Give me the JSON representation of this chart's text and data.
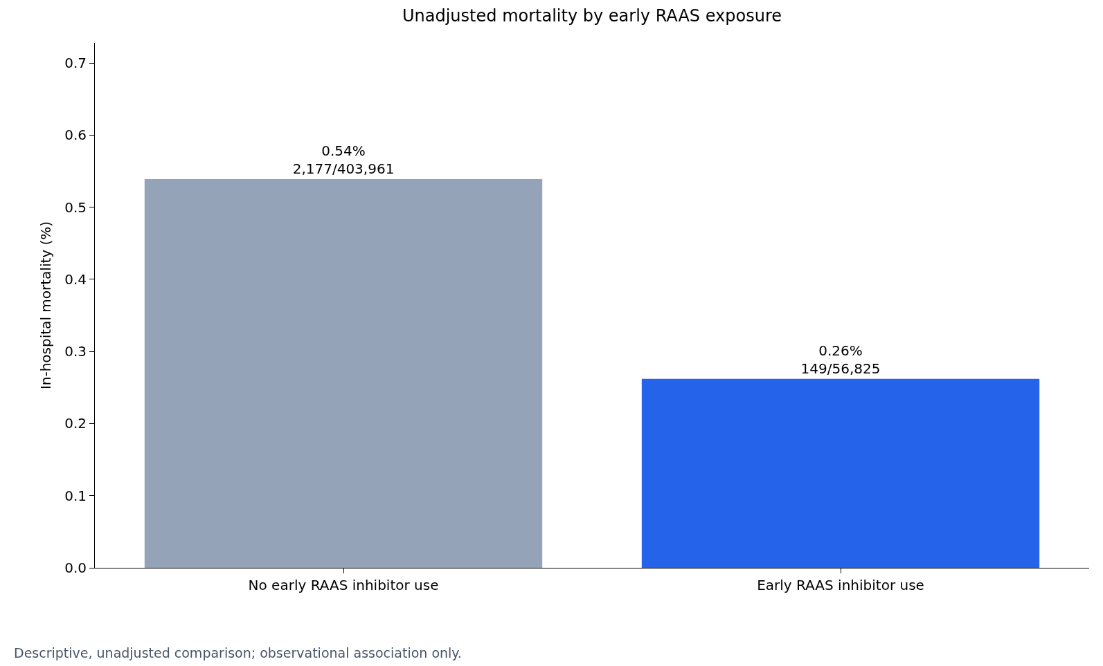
{
  "chart_data": {
    "type": "bar",
    "title": "Unadjusted mortality by early RAAS exposure",
    "ylabel": "In-hospital mortality (%)",
    "categories": [
      "No early RAAS inhibitor use",
      "Early RAAS inhibitor use"
    ],
    "values": [
      0.539,
      0.262
    ],
    "colors": [
      "#94a3b8",
      "#2563eb"
    ],
    "value_labels": [
      "0.54%\n2,177/403,961",
      "0.26%\n149/56,825"
    ],
    "ylim": [
      0,
      0.728
    ],
    "yticks": [
      {
        "value": 0,
        "label": "0.0"
      },
      0.1,
      0.2,
      0.3,
      0.4,
      0.5,
      0.6,
      0.7
    ],
    "grid": false,
    "annotations": [
      "Descriptive, unadjusted comparison; observational association only."
    ]
  }
}
